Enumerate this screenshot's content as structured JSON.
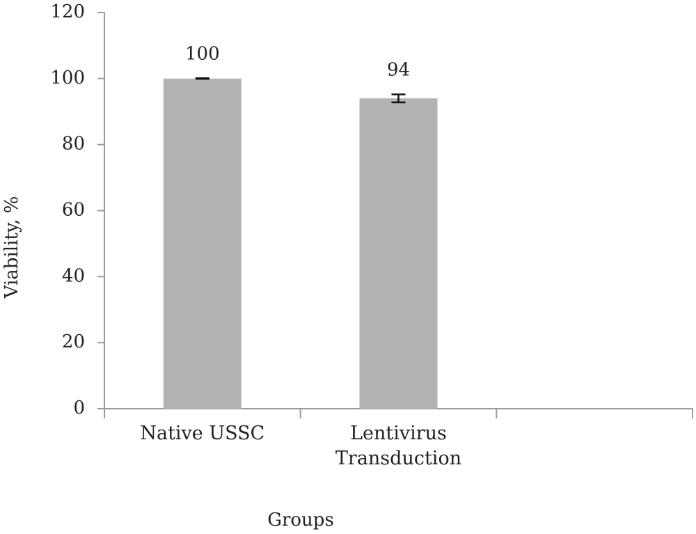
{
  "chart_data": {
    "type": "bar",
    "y_label": "Viability, %",
    "x_label": "Groups",
    "categories": [
      "Native USSC",
      "Lentivirus Transduction",
      null
    ],
    "values": [
      100,
      94,
      null
    ],
    "errors": [
      0.1,
      1.2,
      null
    ],
    "color": "#b3b3b3",
    "ylim": [
      0,
      120
    ],
    "yticks": [
      0,
      20,
      40,
      60,
      80,
      100,
      120
    ]
  }
}
